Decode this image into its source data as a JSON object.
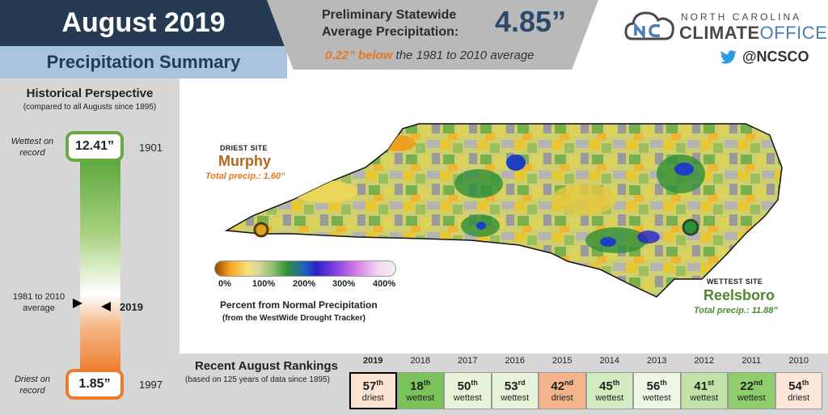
{
  "header": {
    "title": "August 2019",
    "subtitle": "Precipitation Summary",
    "stat_label": "Preliminary Statewide Average Precipitation:",
    "stat_value": "4.85”",
    "stat_note_highlight": "0.22” below",
    "stat_note_rest": "the 1981 to 2010 average"
  },
  "logo": {
    "top": "NORTH CAROLINA",
    "climate": "CLIMATE",
    "office": "OFFICE",
    "twitter": "@NCSCO"
  },
  "historical": {
    "heading": "Historical Perspective",
    "subheading": "(compared to all Augusts since 1895)",
    "wettest_label": "Wettest on record",
    "wettest_value": "12.41”",
    "wettest_year": "1901",
    "average_label": "1981 to 2010 average",
    "current_year": "2019",
    "driest_label": "Driest on record",
    "driest_value": "1.85”",
    "driest_year": "1997",
    "current_position_fraction": 0.66
  },
  "map": {
    "driest": {
      "header": "DRIEST SITE",
      "name": "Murphy",
      "precip": "Total precip.: 1.60”"
    },
    "wettest": {
      "header": "WETTEST SITE",
      "name": "Reelsboro",
      "precip": "Total precip.: 11.88”"
    },
    "legend_ticks": [
      "0%",
      "100%",
      "200%",
      "300%",
      "400%"
    ],
    "legend_title": "Percent from Normal Precipitation",
    "legend_subtitle": "(from the WestWide Drought Tracker)"
  },
  "rankings": {
    "title": "Recent August Rankings",
    "subtitle": "(based on 125 years of data since 1895)",
    "items": [
      {
        "year": "2019",
        "rank": "57",
        "suffix": "th",
        "label": "driest",
        "color": "#fbe3d2",
        "current": true
      },
      {
        "year": "2018",
        "rank": "18",
        "suffix": "th",
        "label": "wettest",
        "color": "#7cc25a"
      },
      {
        "year": "2017",
        "rank": "50",
        "suffix": "th",
        "label": "wettest",
        "color": "#e6f3d8"
      },
      {
        "year": "2016",
        "rank": "53",
        "suffix": "rd",
        "label": "wettest",
        "color": "#e6f3d8"
      },
      {
        "year": "2015",
        "rank": "42",
        "suffix": "nd",
        "label": "driest",
        "color": "#f3b48b"
      },
      {
        "year": "2014",
        "rank": "45",
        "suffix": "th",
        "label": "wettest",
        "color": "#d3ebc0"
      },
      {
        "year": "2013",
        "rank": "56",
        "suffix": "th",
        "label": "wettest",
        "color": "#eef7e6"
      },
      {
        "year": "2012",
        "rank": "41",
        "suffix": "st",
        "label": "wettest",
        "color": "#c2e3a8"
      },
      {
        "year": "2011",
        "rank": "22",
        "suffix": "nd",
        "label": "wettest",
        "color": "#8fcc6c"
      },
      {
        "year": "2010",
        "rank": "54",
        "suffix": "th",
        "label": "driest",
        "color": "#fbe6d8"
      }
    ]
  }
}
